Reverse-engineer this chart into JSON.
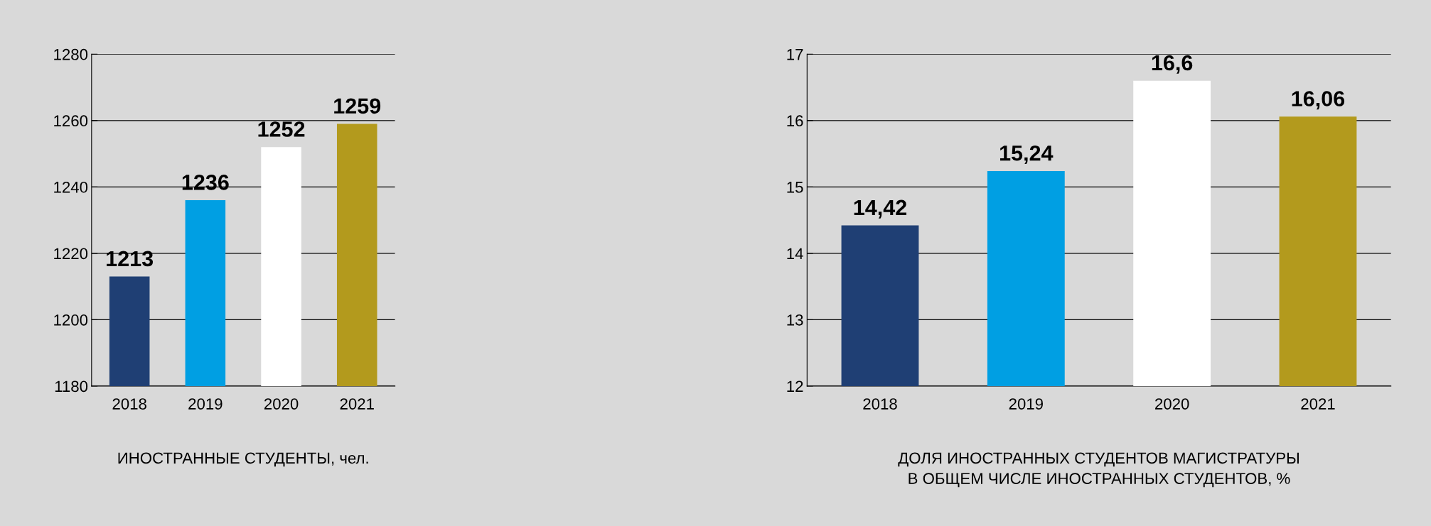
{
  "chart_data": [
    {
      "type": "bar",
      "xlabel": "ИНОСТРАННЫЕ СТУДЕНТЫ, чел.",
      "categories": [
        "2018",
        "2019",
        "2020",
        "2021"
      ],
      "values": [
        1213,
        1236,
        1252,
        1259
      ],
      "colors": [
        "#1f3f74",
        "#009fe3",
        "#ffffff",
        "#b39a1d"
      ],
      "ylim": [
        1180,
        1280
      ],
      "yticks": [
        1180,
        1200,
        1220,
        1240,
        1260,
        1280
      ],
      "grid": "y",
      "data_labels": true
    },
    {
      "type": "bar",
      "xlabel": "ДОЛЯ ИНОСТРАННЫХ СТУДЕНТОВ МАГИСТРАТУРЫ\nВ ОБЩЕМ ЧИСЛЕ ИНОСТРАННЫХ СТУДЕНТОВ, %",
      "categories": [
        "2018",
        "2019",
        "2020",
        "2021"
      ],
      "values": [
        14.42,
        15.24,
        16.6,
        16.06
      ],
      "value_labels": [
        "14,42",
        "15,24",
        "16,6",
        "16,06"
      ],
      "colors": [
        "#1f3f74",
        "#009fe3",
        "#ffffff",
        "#b39a1d"
      ],
      "ylim": [
        12,
        17
      ],
      "yticks": [
        12,
        13,
        14,
        15,
        16,
        17
      ],
      "grid": "y"
    }
  ]
}
